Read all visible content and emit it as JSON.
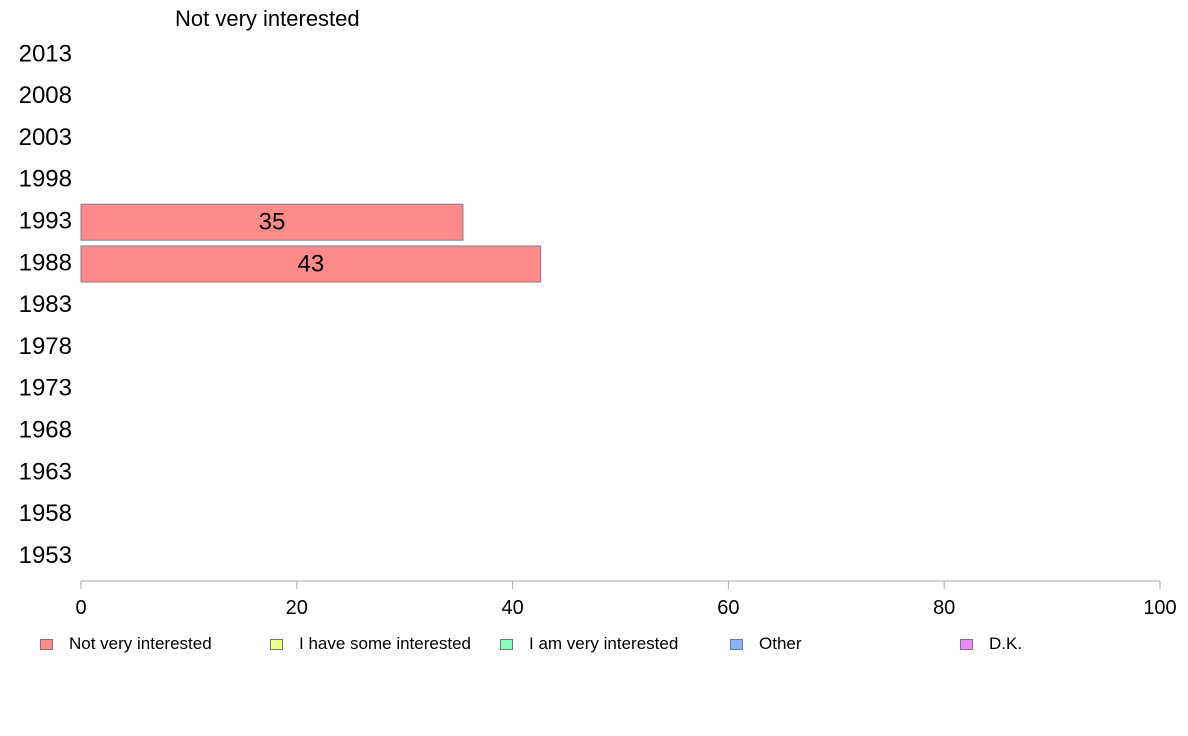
{
  "chart_data": {
    "type": "bar",
    "orientation": "horizontal",
    "stacked": true,
    "title": "Not very interested",
    "categories": [
      "2013",
      "2008",
      "2003",
      "1998",
      "1993",
      "1988",
      "1983",
      "1978",
      "1973",
      "1968",
      "1963",
      "1958",
      "1953"
    ],
    "series": [
      {
        "name": "Not very interested",
        "color": "#ff8a8a",
        "values": [
          null,
          null,
          null,
          null,
          35.4,
          42.6,
          null,
          null,
          null,
          null,
          null,
          null,
          null
        ],
        "labels": [
          "",
          "",
          "",
          "",
          "35",
          "43",
          "",
          "",
          "",
          "",
          "",
          "",
          ""
        ]
      },
      {
        "name": "I have some interested",
        "color": "#eeff88",
        "values": [
          null,
          null,
          null,
          null,
          null,
          null,
          null,
          null,
          null,
          null,
          null,
          null,
          null
        ]
      },
      {
        "name": "I am very interested",
        "color": "#88ffbb",
        "values": [
          null,
          null,
          null,
          null,
          null,
          null,
          null,
          null,
          null,
          null,
          null,
          null,
          null
        ]
      },
      {
        "name": "Other",
        "color": "#88b4ff",
        "values": [
          null,
          null,
          null,
          null,
          null,
          null,
          null,
          null,
          null,
          null,
          null,
          null,
          null
        ]
      },
      {
        "name": "D.K.",
        "color": "#ee88ff",
        "values": [
          null,
          null,
          null,
          null,
          null,
          null,
          null,
          null,
          null,
          null,
          null,
          null,
          null
        ]
      }
    ],
    "xlim": [
      0,
      100
    ],
    "xticks": [
      "0",
      "20",
      "40",
      "60",
      "80",
      "100"
    ],
    "grid": false,
    "legend_position": "bottom"
  }
}
